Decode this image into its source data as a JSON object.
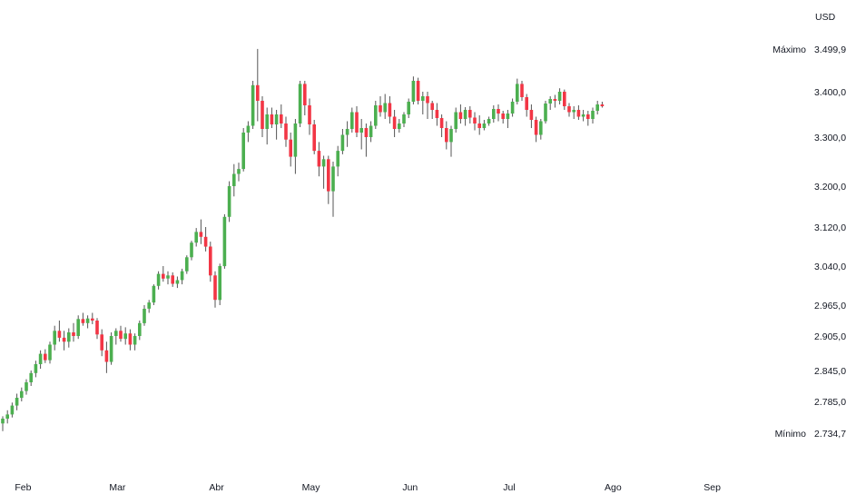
{
  "chart_data": {
    "type": "candlestick",
    "currency": "USD",
    "max_label": "Máximo",
    "min_label": "Mínimo",
    "max_value_text": "3.499,92",
    "min_value_text": "2.734,72",
    "max_value": 3499.92,
    "min_value": 2734.72,
    "y_ticks": [
      {
        "label": "3.400,00",
        "value": 3400
      },
      {
        "label": "3.300,00",
        "value": 3300
      },
      {
        "label": "3.200,00",
        "value": 3200
      },
      {
        "label": "3.120,00",
        "value": 3120
      },
      {
        "label": "3.040,00",
        "value": 3040
      },
      {
        "label": "2.965,00",
        "value": 2965
      },
      {
        "label": "2.905,00",
        "value": 2905
      },
      {
        "label": "2.845,00",
        "value": 2845
      },
      {
        "label": "2.785,00",
        "value": 2785
      }
    ],
    "x_ticks": [
      {
        "label": "Feb",
        "index": 2
      },
      {
        "label": "Mar",
        "index": 22
      },
      {
        "label": "Abr",
        "index": 43
      },
      {
        "label": "May",
        "index": 63
      },
      {
        "label": "Jun",
        "index": 84
      },
      {
        "label": "Jul",
        "index": 105
      },
      {
        "label": "Ago",
        "index": 127
      },
      {
        "label": "Sep",
        "index": 148
      }
    ],
    "colors": {
      "up": "#4caf50",
      "down": "#f23645",
      "wick": "#555555",
      "axis_text": "#131722"
    },
    "candles": [
      [
        2748,
        2760,
        2735,
        2756
      ],
      [
        2756,
        2770,
        2748,
        2763
      ],
      [
        2763,
        2783,
        2758,
        2778
      ],
      [
        2778,
        2800,
        2770,
        2792
      ],
      [
        2792,
        2812,
        2785,
        2805
      ],
      [
        2805,
        2828,
        2798,
        2822
      ],
      [
        2822,
        2845,
        2815,
        2840
      ],
      [
        2840,
        2862,
        2832,
        2856
      ],
      [
        2856,
        2880,
        2848,
        2874
      ],
      [
        2874,
        2882,
        2858,
        2863
      ],
      [
        2863,
        2895,
        2857,
        2890
      ],
      [
        2890,
        2925,
        2880,
        2915
      ],
      [
        2915,
        2935,
        2895,
        2902
      ],
      [
        2902,
        2915,
        2880,
        2895
      ],
      [
        2895,
        2920,
        2885,
        2912
      ],
      [
        2912,
        2930,
        2895,
        2905
      ],
      [
        2905,
        2945,
        2900,
        2938
      ],
      [
        2938,
        2950,
        2925,
        2930
      ],
      [
        2930,
        2945,
        2920,
        2939
      ],
      [
        2939,
        2950,
        2928,
        2935
      ],
      [
        2935,
        2940,
        2900,
        2908
      ],
      [
        2908,
        2918,
        2870,
        2880
      ],
      [
        2880,
        2895,
        2840,
        2860
      ],
      [
        2860,
        2912,
        2855,
        2905
      ],
      [
        2905,
        2920,
        2890,
        2915
      ],
      [
        2915,
        2925,
        2895,
        2900
      ],
      [
        2900,
        2922,
        2890,
        2910
      ],
      [
        2910,
        2918,
        2880,
        2890
      ],
      [
        2890,
        2910,
        2880,
        2905
      ],
      [
        2905,
        2935,
        2898,
        2930
      ],
      [
        2930,
        2965,
        2925,
        2958
      ],
      [
        2958,
        2975,
        2950,
        2970
      ],
      [
        2970,
        3005,
        2965,
        3002
      ],
      [
        3002,
        3030,
        2995,
        3025
      ],
      [
        3025,
        3040,
        3010,
        3016
      ],
      [
        3016,
        3030,
        3005,
        3022
      ],
      [
        3022,
        3028,
        3000,
        3006
      ],
      [
        3006,
        3020,
        2998,
        3013
      ],
      [
        3013,
        3035,
        3005,
        3030
      ],
      [
        3030,
        3062,
        3025,
        3058
      ],
      [
        3058,
        3092,
        3052,
        3088
      ],
      [
        3088,
        3118,
        3080,
        3110
      ],
      [
        3110,
        3135,
        3085,
        3100
      ],
      [
        3100,
        3120,
        3070,
        3080
      ],
      [
        3080,
        3090,
        3010,
        3022
      ],
      [
        3022,
        3030,
        2960,
        2975
      ],
      [
        2975,
        3045,
        2965,
        3040
      ],
      [
        3040,
        3145,
        3035,
        3140
      ],
      [
        3140,
        3210,
        3130,
        3200
      ],
      [
        3200,
        3245,
        3180,
        3225
      ],
      [
        3225,
        3248,
        3210,
        3235
      ],
      [
        3235,
        3320,
        3230,
        3310
      ],
      [
        3310,
        3335,
        3290,
        3325
      ],
      [
        3325,
        3425,
        3318,
        3415
      ],
      [
        3415,
        3498,
        3335,
        3380
      ],
      [
        3380,
        3390,
        3300,
        3318
      ],
      [
        3318,
        3365,
        3285,
        3350
      ],
      [
        3350,
        3365,
        3320,
        3328
      ],
      [
        3328,
        3360,
        3295,
        3350
      ],
      [
        3350,
        3372,
        3320,
        3330
      ],
      [
        3330,
        3345,
        3280,
        3295
      ],
      [
        3295,
        3310,
        3240,
        3260
      ],
      [
        3260,
        3340,
        3225,
        3330
      ],
      [
        3330,
        3425,
        3322,
        3418
      ],
      [
        3418,
        3425,
        3348,
        3370
      ],
      [
        3370,
        3385,
        3305,
        3328
      ],
      [
        3328,
        3338,
        3265,
        3272
      ],
      [
        3272,
        3290,
        3220,
        3240
      ],
      [
        3240,
        3262,
        3195,
        3255
      ],
      [
        3255,
        3262,
        3165,
        3190
      ],
      [
        3190,
        3250,
        3140,
        3240
      ],
      [
        3240,
        3282,
        3220,
        3272
      ],
      [
        3272,
        3318,
        3265,
        3305
      ],
      [
        3305,
        3335,
        3280,
        3318
      ],
      [
        3318,
        3365,
        3310,
        3355
      ],
      [
        3355,
        3368,
        3300,
        3310
      ],
      [
        3310,
        3340,
        3275,
        3320
      ],
      [
        3320,
        3330,
        3260,
        3300
      ],
      [
        3300,
        3335,
        3290,
        3325
      ],
      [
        3325,
        3380,
        3318,
        3370
      ],
      [
        3370,
        3390,
        3345,
        3355
      ],
      [
        3355,
        3395,
        3340,
        3375
      ],
      [
        3375,
        3390,
        3330,
        3345
      ],
      [
        3345,
        3360,
        3300,
        3318
      ],
      [
        3318,
        3340,
        3310,
        3330
      ],
      [
        3330,
        3355,
        3322,
        3350
      ],
      [
        3350,
        3385,
        3342,
        3378
      ],
      [
        3378,
        3435,
        3372,
        3425
      ],
      [
        3425,
        3432,
        3372,
        3380
      ],
      [
        3380,
        3400,
        3350,
        3390
      ],
      [
        3390,
        3400,
        3340,
        3375
      ],
      [
        3375,
        3380,
        3340,
        3360
      ],
      [
        3360,
        3375,
        3325,
        3342
      ],
      [
        3342,
        3350,
        3300,
        3320
      ],
      [
        3320,
        3335,
        3275,
        3290
      ],
      [
        3290,
        3325,
        3260,
        3318
      ],
      [
        3318,
        3365,
        3310,
        3355
      ],
      [
        3355,
        3372,
        3330,
        3340
      ],
      [
        3340,
        3366,
        3325,
        3360
      ],
      [
        3360,
        3368,
        3330,
        3343
      ],
      [
        3343,
        3355,
        3315,
        3330
      ],
      [
        3330,
        3348,
        3305,
        3320
      ],
      [
        3320,
        3338,
        3315,
        3330
      ],
      [
        3330,
        3345,
        3325,
        3340
      ],
      [
        3340,
        3370,
        3332,
        3362
      ],
      [
        3362,
        3372,
        3335,
        3352
      ],
      [
        3352,
        3358,
        3330,
        3340
      ],
      [
        3340,
        3360,
        3320,
        3352
      ],
      [
        3352,
        3385,
        3345,
        3378
      ],
      [
        3378,
        3430,
        3372,
        3418
      ],
      [
        3418,
        3425,
        3380,
        3388
      ],
      [
        3388,
        3395,
        3345,
        3360
      ],
      [
        3360,
        3372,
        3320,
        3338
      ],
      [
        3338,
        3345,
        3290,
        3305
      ],
      [
        3305,
        3340,
        3295,
        3335
      ],
      [
        3335,
        3380,
        3330,
        3374
      ],
      [
        3374,
        3390,
        3360,
        3384
      ],
      [
        3384,
        3393,
        3365,
        3380
      ],
      [
        3380,
        3408,
        3372,
        3400
      ],
      [
        3400,
        3405,
        3360,
        3368
      ],
      [
        3368,
        3375,
        3345,
        3355
      ],
      [
        3355,
        3368,
        3340,
        3360
      ],
      [
        3360,
        3370,
        3338,
        3345
      ],
      [
        3345,
        3360,
        3335,
        3350
      ],
      [
        3350,
        3358,
        3325,
        3340
      ],
      [
        3340,
        3365,
        3330,
        3358
      ],
      [
        3358,
        3380,
        3350,
        3372
      ],
      [
        3372,
        3378,
        3365,
        3368
      ]
    ]
  }
}
